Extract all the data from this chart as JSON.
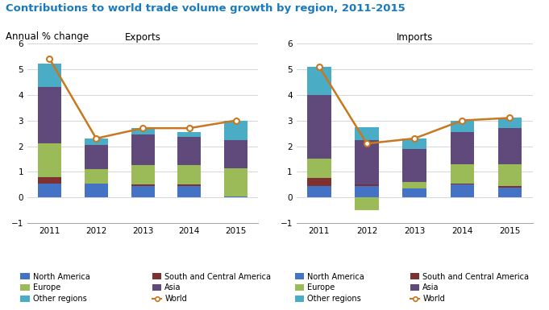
{
  "title": "Contributions to world trade volume growth by region, 2011-2015",
  "subtitle": "Annual % change",
  "years": [
    2011,
    2012,
    2013,
    2014,
    2015
  ],
  "exports": {
    "north_america": [
      0.55,
      0.55,
      0.45,
      0.45,
      0.05
    ],
    "south_central_america": [
      0.25,
      0.0,
      0.05,
      0.05,
      0.0
    ],
    "europe": [
      1.3,
      0.55,
      0.75,
      0.75,
      1.1
    ],
    "asia": [
      2.2,
      0.95,
      1.2,
      1.1,
      1.1
    ],
    "other_regions": [
      0.9,
      0.25,
      0.25,
      0.2,
      0.75
    ],
    "world": [
      5.4,
      2.3,
      2.7,
      2.7,
      3.0
    ]
  },
  "imports": {
    "north_america": [
      0.45,
      0.45,
      0.35,
      0.5,
      0.4
    ],
    "south_central_america": [
      0.3,
      0.05,
      0.0,
      0.05,
      0.05
    ],
    "europe": [
      0.75,
      -0.5,
      0.25,
      0.75,
      0.85
    ],
    "asia": [
      2.5,
      1.75,
      1.3,
      1.25,
      1.4
    ],
    "other_regions": [
      1.1,
      0.5,
      0.4,
      0.45,
      0.4
    ],
    "world": [
      5.1,
      2.1,
      2.3,
      3.0,
      3.1
    ]
  },
  "colors": {
    "north_america": "#4472c4",
    "south_central_america": "#7f3030",
    "europe": "#9bbb59",
    "asia": "#604a7b",
    "other_regions": "#4bacc6",
    "world_line": "#c87820"
  },
  "ylim": [
    -1,
    6
  ],
  "yticks": [
    -1,
    0,
    1,
    2,
    3,
    4,
    5,
    6
  ],
  "legend_left": [
    "North America",
    "Europe",
    "Other regions"
  ],
  "legend_right": [
    "South and Central America",
    "Asia",
    "World"
  ]
}
